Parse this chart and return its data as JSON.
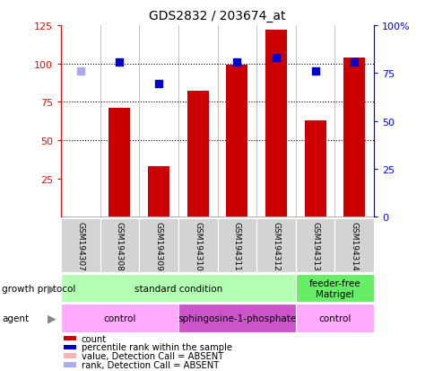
{
  "title": "GDS2832 / 203674_at",
  "samples": [
    "GSM194307",
    "GSM194308",
    "GSM194309",
    "GSM194310",
    "GSM194311",
    "GSM194312",
    "GSM194313",
    "GSM194314"
  ],
  "bar_values": [
    null,
    71,
    33,
    82,
    99,
    122,
    63,
    104
  ],
  "bar_colors": [
    "#ffb3b3",
    "#cc0000",
    "#cc0000",
    "#cc0000",
    "#cc0000",
    "#cc0000",
    "#cc0000",
    "#cc0000"
  ],
  "rank_values": [
    95,
    101,
    87,
    null,
    101,
    104,
    95,
    101
  ],
  "rank_absent": [
    true,
    false,
    false,
    false,
    false,
    false,
    false,
    false
  ],
  "rank_colors_present": "#0000cc",
  "rank_colors_absent": "#aaaaee",
  "ylim_left": [
    0,
    125
  ],
  "ylim_right": [
    0,
    100
  ],
  "yticks_left": [
    25,
    50,
    75,
    100,
    125
  ],
  "yticks_right": [
    0,
    25,
    50,
    75,
    100
  ],
  "ytick_labels_right": [
    "0",
    "25",
    "50",
    "75",
    "100%"
  ],
  "hlines": [
    50,
    75,
    100
  ],
  "growth_protocol_groups": [
    {
      "label": "standard condition",
      "start": 0,
      "end": 6,
      "color": "#b3ffb3"
    },
    {
      "label": "feeder-free\nMatrigel",
      "start": 6,
      "end": 8,
      "color": "#66ee66"
    }
  ],
  "agent_groups": [
    {
      "label": "control",
      "start": 0,
      "end": 3,
      "color": "#ffaaff"
    },
    {
      "label": "sphingosine-1-phosphate",
      "start": 3,
      "end": 6,
      "color": "#cc55cc"
    },
    {
      "label": "control",
      "start": 6,
      "end": 8,
      "color": "#ffaaff"
    }
  ],
  "legend_items": [
    {
      "color": "#cc0000",
      "label": "count"
    },
    {
      "color": "#0000cc",
      "label": "percentile rank within the sample"
    },
    {
      "color": "#ffb3b3",
      "label": "value, Detection Call = ABSENT"
    },
    {
      "color": "#aaaaee",
      "label": "rank, Detection Call = ABSENT"
    }
  ]
}
